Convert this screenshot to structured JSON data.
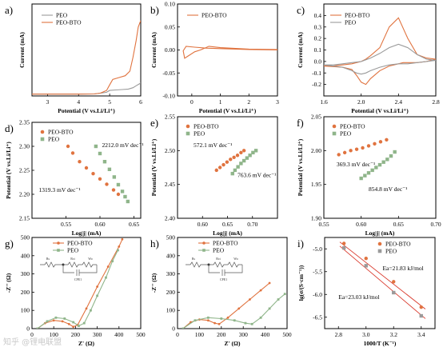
{
  "figure": {
    "watermark": "知乎 @锂电联盟"
  },
  "colors": {
    "orange": "#e0733f",
    "gray": "#9a9a9a",
    "green": "#8fb58a",
    "red": "#d9382b",
    "axis": "#000000"
  },
  "chart_data": [
    {
      "id": "a",
      "panel_label": "a)",
      "type": "line",
      "xlabel": "Potential (V vs.Li/Li⁺)",
      "ylabel": "Current (mA)",
      "xlim": [
        2.5,
        6.0
      ],
      "ylim": [
        0,
        1.0
      ],
      "xticks": [
        3,
        4,
        5,
        6
      ],
      "yticks": [],
      "legend": "upper-left",
      "series": [
        {
          "name": "PEO",
          "color": "gray",
          "x": [
            2.5,
            3.0,
            3.5,
            4.0,
            4.5,
            4.7,
            4.9,
            5.0,
            5.2,
            5.4,
            5.6,
            5.75,
            5.85,
            5.95,
            6.0
          ],
          "y": [
            0.02,
            0.02,
            0.02,
            0.02,
            0.022,
            0.03,
            0.04,
            0.06,
            0.065,
            0.07,
            0.075,
            0.09,
            0.11,
            0.13,
            0.14
          ]
        },
        {
          "name": "PEO-BTO",
          "color": "orange",
          "x": [
            2.5,
            3.0,
            3.5,
            4.0,
            4.5,
            4.7,
            4.9,
            5.0,
            5.1,
            5.3,
            5.5,
            5.65,
            5.75,
            5.85,
            5.92,
            6.0
          ],
          "y": [
            0.02,
            0.02,
            0.02,
            0.02,
            0.022,
            0.03,
            0.06,
            0.12,
            0.18,
            0.2,
            0.22,
            0.27,
            0.42,
            0.6,
            0.75,
            0.82
          ]
        }
      ]
    },
    {
      "id": "b",
      "panel_label": "b)",
      "type": "line",
      "xlabel": "Potential (V vs.Li/Li⁺)",
      "ylabel": "Current (mA)",
      "xlim": [
        -0.5,
        3.0
      ],
      "ylim": [
        -0.1,
        0.1
      ],
      "xticks": [
        0,
        1,
        2,
        3
      ],
      "xticklabels": [
        "0",
        "1",
        "2",
        "3"
      ],
      "yticks": [
        -0.1,
        -0.05,
        0.0,
        0.05,
        0.1
      ],
      "yticklabels": [
        "-0.10",
        "-0.05",
        "0.00",
        "0.05",
        "0.10"
      ],
      "legend": "upper-left",
      "series": [
        {
          "name": "PEO-BTO",
          "color": "orange",
          "x": [
            3.0,
            2.0,
            1.0,
            0.5,
            0.1,
            -0.2,
            -0.3,
            -0.25,
            -0.1,
            0.1,
            0.3,
            0.6,
            1.0,
            2.0,
            3.0
          ],
          "y": [
            0.0,
            0.001,
            0.003,
            0.004,
            0.006,
            0.008,
            -0.002,
            -0.018,
            -0.012,
            -0.004,
            0.0,
            0.008,
            0.005,
            0.002,
            0.001
          ]
        }
      ]
    },
    {
      "id": "c",
      "panel_label": "c)",
      "type": "line",
      "xlabel": "Potential (V vs.Li/Li⁺)",
      "ylabel": "Current (mA)",
      "xlim": [
        1.6,
        2.8
      ],
      "ylim": [
        -0.3,
        0.5
      ],
      "xticks": [
        1.6,
        2.0,
        2.4,
        2.8
      ],
      "xticklabels": [
        "1.6",
        "2.0",
        "2.4",
        "2.8"
      ],
      "yticks": [
        -0.2,
        -0.1,
        0.0,
        0.1,
        0.2,
        0.3,
        0.4
      ],
      "yticklabels": [
        "-0.2",
        "-0.1",
        "0.0",
        "0.1",
        "0.2",
        "0.3",
        "0.4"
      ],
      "legend": "upper-left",
      "series": [
        {
          "name": "PEO-BTO",
          "color": "orange",
          "x": [
            1.6,
            1.8,
            1.9,
            1.95,
            2.0,
            2.05,
            2.1,
            2.2,
            2.3,
            2.35,
            2.4,
            2.45,
            2.5,
            2.6,
            2.7,
            2.8,
            2.7,
            2.6,
            2.5,
            2.4,
            2.3,
            2.2,
            2.1,
            2.05,
            2.0,
            1.95,
            1.9,
            1.8,
            1.7,
            1.6
          ],
          "y": [
            -0.04,
            -0.05,
            -0.07,
            -0.12,
            -0.18,
            -0.2,
            -0.15,
            -0.08,
            -0.04,
            -0.03,
            -0.02,
            -0.01,
            -0.01,
            -0.01,
            0.0,
            0.02,
            0.03,
            0.06,
            0.2,
            0.38,
            0.3,
            0.12,
            0.05,
            0.02,
            0.0,
            -0.01,
            -0.02,
            -0.03,
            -0.04,
            -0.04
          ]
        },
        {
          "name": "PEO",
          "color": "gray",
          "x": [
            1.6,
            1.8,
            1.9,
            1.95,
            2.0,
            2.05,
            2.1,
            2.2,
            2.3,
            2.4,
            2.5,
            2.6,
            2.7,
            2.8,
            2.7,
            2.6,
            2.5,
            2.4,
            2.3,
            2.2,
            2.1,
            2.0,
            1.9,
            1.8,
            1.7,
            1.6
          ],
          "y": [
            -0.03,
            -0.05,
            -0.08,
            -0.1,
            -0.11,
            -0.1,
            -0.08,
            -0.05,
            -0.03,
            -0.02,
            -0.02,
            -0.01,
            0.0,
            0.01,
            0.02,
            0.06,
            0.12,
            0.15,
            0.12,
            0.07,
            0.03,
            0.0,
            -0.01,
            -0.02,
            -0.03,
            -0.03
          ]
        }
      ]
    },
    {
      "id": "d",
      "panel_label": "d)",
      "type": "scatter",
      "xlabel": "Log|j| (mA)",
      "ylabel": "Potential (V vs.Li/Li⁺)",
      "xlim": [
        0.5,
        0.66
      ],
      "ylim": [
        2.15,
        2.35
      ],
      "xticks": [
        0.55,
        0.6,
        0.65
      ],
      "xticklabels": [
        "0.55",
        "0.60",
        "0.65"
      ],
      "yticks": [
        2.15,
        2.2,
        2.25,
        2.3,
        2.35
      ],
      "yticklabels": [
        "2.15",
        "2.20",
        "2.25",
        "2.30",
        "2.35"
      ],
      "legend": "upper-left",
      "series": [
        {
          "name": "PEO-BTO",
          "color": "orange",
          "marker": "circle",
          "x": [
            0.553,
            0.56,
            0.57,
            0.58,
            0.59,
            0.6,
            0.61,
            0.62,
            0.627
          ],
          "y": [
            2.3,
            2.286,
            2.268,
            2.255,
            2.243,
            2.232,
            2.221,
            2.209,
            2.2
          ]
        },
        {
          "name": "PEO",
          "color": "green",
          "marker": "square",
          "x": [
            0.594,
            0.6,
            0.607,
            0.614,
            0.621,
            0.627,
            0.633,
            0.637,
            0.641
          ],
          "y": [
            2.3,
            2.285,
            2.268,
            2.252,
            2.236,
            2.22,
            2.206,
            2.195,
            2.185
          ]
        }
      ],
      "annotations": [
        {
          "text": "2212.0 mV dec⁻¹",
          "x": 0.603,
          "y": 2.298
        },
        {
          "text": "1319.3 mV dec⁻¹",
          "x": 0.51,
          "y": 2.205
        }
      ]
    },
    {
      "id": "e",
      "panel_label": "e)",
      "type": "scatter",
      "xlabel": "Log|j| (mA)",
      "ylabel": "Potential (V vs.Li/Li⁺)",
      "xlim": [
        0.55,
        0.75
      ],
      "ylim": [
        2.4,
        2.55
      ],
      "xticks": [
        0.6,
        0.65,
        0.7
      ],
      "xticklabels": [
        "0.60",
        "0.65",
        "0.70"
      ],
      "yticks": [
        2.4,
        2.45,
        2.5,
        2.55
      ],
      "yticklabels": [
        "2.40",
        "2.45",
        "2.50",
        "2.55"
      ],
      "legend": "upper-left",
      "series": [
        {
          "name": "PEO-BTO",
          "color": "orange",
          "marker": "circle",
          "x": [
            0.628,
            0.635,
            0.642,
            0.649,
            0.656,
            0.663,
            0.67,
            0.677,
            0.683
          ],
          "y": [
            2.471,
            2.475,
            2.479,
            2.483,
            2.487,
            2.49,
            2.493,
            2.497,
            2.5
          ]
        },
        {
          "name": "PEO",
          "color": "green",
          "marker": "square",
          "x": [
            0.66,
            0.665,
            0.671,
            0.677,
            0.683,
            0.689,
            0.695,
            0.701,
            0.707
          ],
          "y": [
            2.466,
            2.471,
            2.476,
            2.481,
            2.485,
            2.489,
            2.493,
            2.497,
            2.5
          ]
        }
      ],
      "annotations": [
        {
          "text": "572.1 mV dec⁻¹",
          "x": 0.582,
          "y": 2.505
        },
        {
          "text": "763.6 mV dec⁻¹",
          "x": 0.67,
          "y": 2.461
        }
      ]
    },
    {
      "id": "f",
      "panel_label": "f)",
      "type": "scatter",
      "xlabel": "Log|j| (mA)",
      "ylabel": "Potential (V vs.Li/Li⁺)",
      "xlim": [
        0.55,
        0.7
      ],
      "ylim": [
        1.9,
        2.05
      ],
      "xticks": [
        0.55,
        0.6,
        0.65,
        0.7
      ],
      "xticklabels": [
        "0.55",
        "0.60",
        "0.65",
        "0.70"
      ],
      "yticks": [
        1.9,
        1.95,
        2.0,
        2.05
      ],
      "yticklabels": [
        "1.90",
        "1.95",
        "2.00",
        "2.05"
      ],
      "legend": "upper-left",
      "series": [
        {
          "name": "PEO-BTO",
          "color": "orange",
          "marker": "circle",
          "x": [
            0.57,
            0.578,
            0.586,
            0.594,
            0.602,
            0.61,
            0.618,
            0.626,
            0.634
          ],
          "y": [
            1.994,
            1.997,
            2.0,
            2.002,
            2.004,
            2.007,
            2.01,
            2.013,
            2.016
          ]
        },
        {
          "name": "PEO",
          "color": "green",
          "marker": "square",
          "x": [
            0.6,
            0.605,
            0.61,
            0.615,
            0.62,
            0.625,
            0.63,
            0.635,
            0.64,
            0.645
          ],
          "y": [
            1.959,
            1.963,
            1.967,
            1.971,
            1.975,
            1.979,
            1.983,
            1.987,
            1.992,
            1.998
          ]
        }
      ],
      "annotations": [
        {
          "text": "369.3 mV dec⁻¹",
          "x": 0.567,
          "y": 1.977
        },
        {
          "text": "854.8 mV dec⁻¹",
          "x": 0.61,
          "y": 1.94
        }
      ]
    },
    {
      "id": "g",
      "panel_label": "g)",
      "type": "line",
      "xlabel": "Z' (Ω)",
      "ylabel": "-Z'' (Ω)",
      "xlim": [
        0,
        500
      ],
      "ylim": [
        0,
        500
      ],
      "xticks": [
        0,
        100,
        200,
        300,
        400,
        500
      ],
      "yticks": [
        0,
        100,
        200,
        300,
        400,
        500
      ],
      "legend": "upper-center",
      "circuit": {
        "labels": [
          "Rs",
          "Rct",
          "Wo",
          "CPE1"
        ]
      },
      "series": [
        {
          "name": "PEO-BTO",
          "color": "orange",
          "marker": "circle",
          "x": [
            25,
            60,
            100,
            140,
            170,
            190,
            210,
            250,
            300,
            350,
            400,
            415
          ],
          "y": [
            0,
            30,
            45,
            40,
            25,
            10,
            20,
            110,
            230,
            340,
            450,
            490
          ]
        },
        {
          "name": "PEO",
          "color": "green",
          "marker": "square",
          "x": [
            25,
            70,
            110,
            150,
            190,
            215,
            240,
            270,
            300,
            340,
            370,
            395
          ],
          "y": [
            0,
            40,
            60,
            55,
            35,
            15,
            30,
            100,
            180,
            280,
            370,
            430
          ]
        }
      ]
    },
    {
      "id": "h",
      "panel_label": "h)",
      "type": "line",
      "xlabel": "Z' (Ω)",
      "ylabel": "-Z'' (Ω)",
      "xlim": [
        0,
        500
      ],
      "ylim": [
        0,
        500
      ],
      "xticks": [
        0,
        100,
        200,
        300,
        400,
        500
      ],
      "yticks": [
        0,
        100,
        200,
        300,
        400,
        500
      ],
      "legend": "upper-center",
      "circuit": {
        "labels": [
          "Rs",
          "Rct",
          "Wo",
          "CPE1"
        ]
      },
      "series": [
        {
          "name": "PEO-BTO",
          "color": "orange",
          "marker": "circle",
          "x": [
            25,
            60,
            100,
            140,
            170,
            190,
            230,
            280,
            330,
            380,
            420
          ],
          "y": [
            0,
            35,
            50,
            45,
            30,
            25,
            60,
            110,
            160,
            210,
            250
          ]
        },
        {
          "name": "PEO",
          "color": "green",
          "marker": "square",
          "x": [
            25,
            80,
            140,
            200,
            260,
            310,
            340,
            380,
            420,
            460,
            490
          ],
          "y": [
            0,
            45,
            60,
            55,
            45,
            30,
            25,
            60,
            110,
            160,
            190
          ]
        }
      ]
    },
    {
      "id": "i",
      "panel_label": "i)",
      "type": "scatter",
      "xlabel": "1000/T (K⁻¹)",
      "ylabel": "lg(σ/(S·cm⁻¹))",
      "xlim": [
        2.7,
        3.5
      ],
      "ylim": [
        -6.75,
        -4.75
      ],
      "xticks": [
        2.8,
        3.0,
        3.2,
        3.4
      ],
      "xticklabels": [
        "2.8",
        "3.0",
        "3.2",
        "3.4"
      ],
      "yticks": [
        -6.5,
        -6.0,
        -5.5,
        -5.0
      ],
      "yticklabels": [
        "-6.5",
        "-6.0",
        "-5.5",
        "-5.0"
      ],
      "legend": "upper-right",
      "series": [
        {
          "name": "PEO-BTO",
          "color": "orange",
          "marker": "circle",
          "x": [
            2.84,
            3.0,
            3.2,
            3.4
          ],
          "y": [
            -4.88,
            -5.21,
            -5.72,
            -6.28
          ]
        },
        {
          "name": "PEO",
          "color": "gray",
          "marker": "square",
          "x": [
            2.84,
            3.0,
            3.2,
            3.4
          ],
          "y": [
            -4.98,
            -5.37,
            -5.96,
            -6.47
          ]
        }
      ],
      "fit_lines": [
        {
          "color": "red",
          "x": [
            2.81,
            3.43
          ],
          "y": [
            -4.85,
            -6.32
          ]
        },
        {
          "color": "red",
          "x": [
            2.81,
            3.43
          ],
          "y": [
            -4.94,
            -6.53
          ]
        }
      ],
      "annotations": [
        {
          "text": "Ea=21.83 kJ/mol",
          "x": 3.12,
          "y": -5.47
        },
        {
          "text": "Ea=23.03 kJ/mol",
          "x": 2.8,
          "y": -6.1
        }
      ]
    }
  ]
}
